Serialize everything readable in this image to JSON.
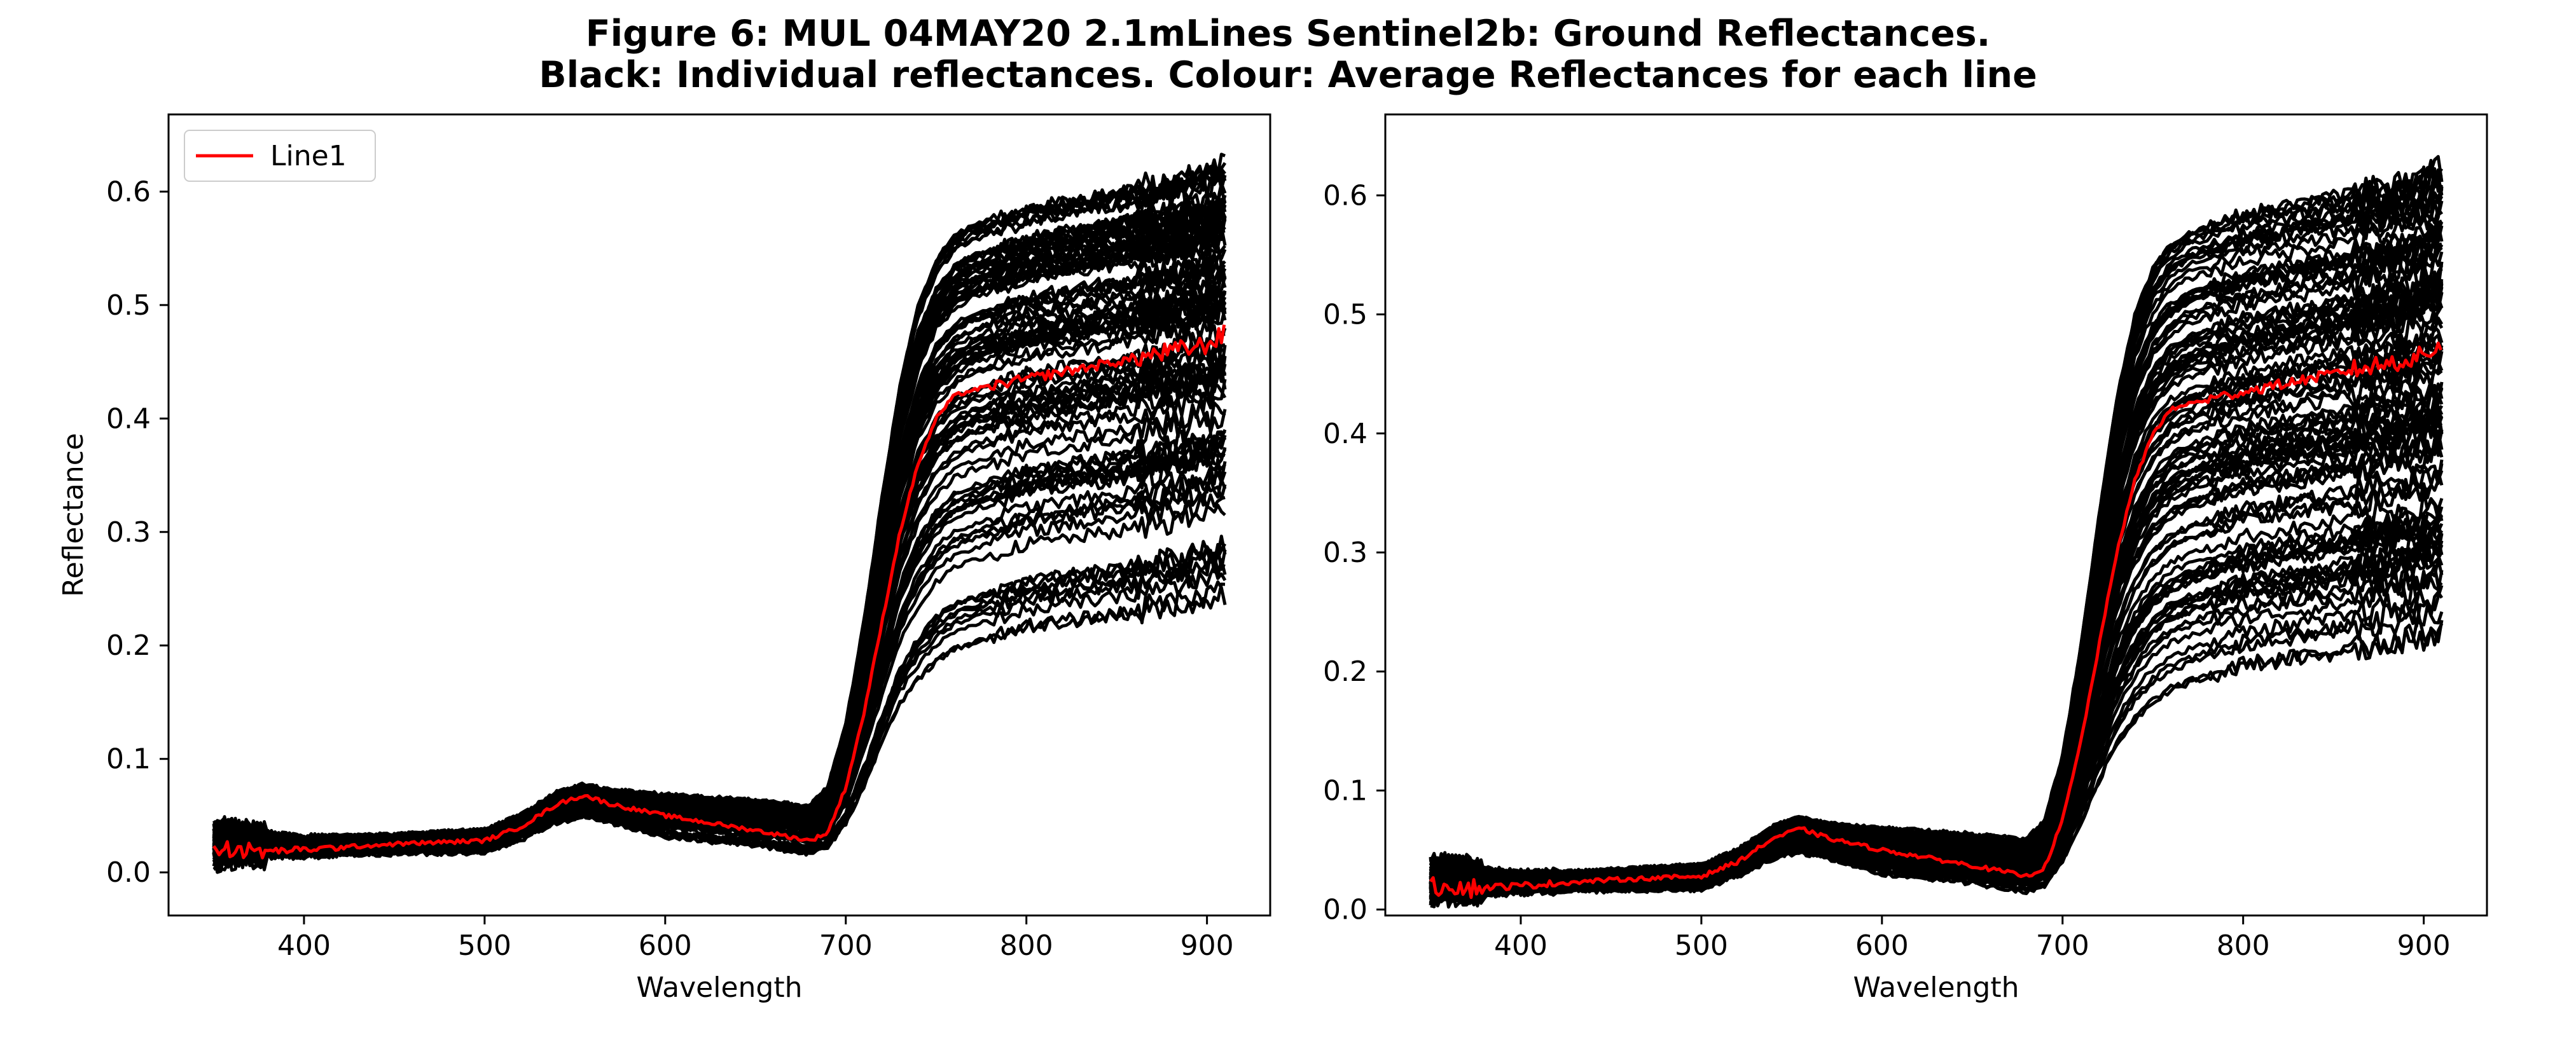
{
  "figure": {
    "title_line1": "Figure 6: MUL 04MAY20 2.1mLines Sentinel2b: Ground Reflectances.",
    "title_line2": "Black: Individual reflectances. Colour: Average Reflectances for each line"
  },
  "colors": {
    "individual": "#000000",
    "average": "#ff0000"
  },
  "chart_data": [
    {
      "type": "line",
      "xlabel": "Wavelength",
      "ylabel": "Reflectance",
      "xlim": [
        325,
        935
      ],
      "ylim": [
        -0.038,
        0.668
      ],
      "xticks": [
        400,
        500,
        600,
        700,
        800,
        900
      ],
      "yticks": [
        0.0,
        0.1,
        0.2,
        0.3,
        0.4,
        0.5,
        0.6
      ],
      "ytick_labels": [
        "0.0",
        "0.1",
        "0.2",
        "0.3",
        "0.4",
        "0.5",
        "0.6"
      ],
      "grid": false,
      "legend": {
        "position": "top-left",
        "entries": [
          {
            "name": "Line1",
            "color": "#ff0000"
          }
        ]
      },
      "x": [
        350,
        360,
        370,
        400,
        450,
        500,
        520,
        540,
        555,
        570,
        600,
        650,
        680,
        690,
        700,
        710,
        720,
        730,
        740,
        750,
        760,
        770,
        800,
        850,
        900,
        910
      ],
      "series": [
        {
          "name": "Line1",
          "color": "#ff0000",
          "values": [
            0.018,
            0.022,
            0.018,
            0.02,
            0.025,
            0.028,
            0.04,
            0.06,
            0.068,
            0.06,
            0.05,
            0.037,
            0.028,
            0.035,
            0.075,
            0.14,
            0.22,
            0.3,
            0.36,
            0.4,
            0.42,
            0.425,
            0.435,
            0.45,
            0.465,
            0.475
          ]
        }
      ],
      "envelope": {
        "lower": [
          0.01,
          0.012,
          0.012,
          0.015,
          0.016,
          0.017,
          0.028,
          0.043,
          0.048,
          0.043,
          0.03,
          0.022,
          0.015,
          0.02,
          0.04,
          0.07,
          0.105,
          0.135,
          0.155,
          0.17,
          0.18,
          0.185,
          0.2,
          0.21,
          0.225,
          0.23
        ],
        "upper": [
          0.035,
          0.04,
          0.035,
          0.03,
          0.033,
          0.037,
          0.05,
          0.07,
          0.077,
          0.072,
          0.068,
          0.063,
          0.058,
          0.075,
          0.13,
          0.22,
          0.33,
          0.43,
          0.5,
          0.54,
          0.56,
          0.57,
          0.585,
          0.6,
          0.615,
          0.625
        ]
      }
    },
    {
      "type": "line",
      "xlabel": "Wavelength",
      "ylabel": "",
      "xlim": [
        325,
        935
      ],
      "ylim": [
        -0.005,
        0.668
      ],
      "xticks": [
        400,
        500,
        600,
        700,
        800,
        900
      ],
      "yticks": [
        0.0,
        0.1,
        0.2,
        0.3,
        0.4,
        0.5,
        0.6
      ],
      "ytick_labels": [
        "0.0",
        "0.1",
        "0.2",
        "0.3",
        "0.4",
        "0.5",
        "0.6"
      ],
      "grid": false,
      "legend": null,
      "x": [
        350,
        360,
        370,
        400,
        450,
        500,
        520,
        540,
        555,
        570,
        600,
        650,
        680,
        690,
        700,
        710,
        720,
        730,
        740,
        750,
        760,
        770,
        800,
        850,
        900,
        910
      ],
      "series": [
        {
          "name": "",
          "color": "#ff0000",
          "values": [
            0.018,
            0.022,
            0.018,
            0.02,
            0.025,
            0.028,
            0.04,
            0.06,
            0.068,
            0.06,
            0.05,
            0.037,
            0.028,
            0.035,
            0.075,
            0.14,
            0.22,
            0.3,
            0.36,
            0.4,
            0.42,
            0.425,
            0.435,
            0.45,
            0.465,
            0.475
          ]
        }
      ],
      "envelope": {
        "lower": [
          0.01,
          0.012,
          0.012,
          0.015,
          0.016,
          0.017,
          0.028,
          0.043,
          0.048,
          0.043,
          0.03,
          0.022,
          0.015,
          0.02,
          0.04,
          0.07,
          0.105,
          0.135,
          0.155,
          0.17,
          0.18,
          0.185,
          0.2,
          0.21,
          0.225,
          0.23
        ],
        "upper": [
          0.035,
          0.04,
          0.035,
          0.03,
          0.033,
          0.037,
          0.05,
          0.07,
          0.077,
          0.072,
          0.068,
          0.063,
          0.058,
          0.075,
          0.13,
          0.22,
          0.33,
          0.43,
          0.5,
          0.54,
          0.56,
          0.57,
          0.585,
          0.6,
          0.615,
          0.625
        ]
      }
    }
  ]
}
